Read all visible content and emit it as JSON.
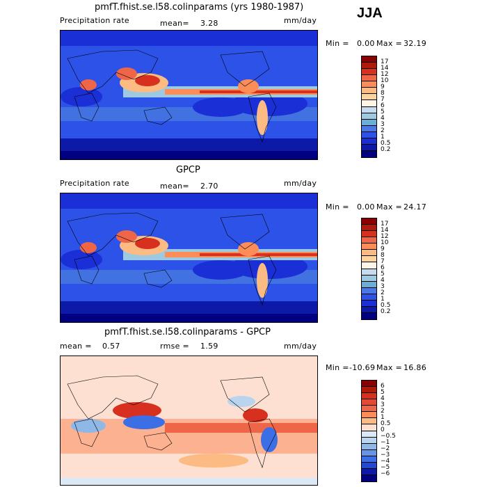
{
  "season": "JJA",
  "panels": [
    {
      "title": "pmfT.fhist.se.l58.colinparams (yrs 1980-1987)",
      "left_label": "Precipitation rate",
      "stat1_label": "mean=",
      "stat1_value": "3.28",
      "stat2_label": "",
      "stat2_value": "",
      "units": "mm/day",
      "min_label": "Min =",
      "min_value": "0.00",
      "max_label": "Max =",
      "max_value": "32.19",
      "colorbar_labels": [
        "17",
        "14",
        "12",
        "10",
        "9",
        "8",
        "7",
        "6",
        "5",
        "4",
        "3",
        "2",
        "1",
        "0.5",
        "0.2"
      ],
      "colorbar_colors": [
        "#8b0000",
        "#b01a0a",
        "#d7301f",
        "#ef6548",
        "#fc8d59",
        "#fdbb84",
        "#fdd49e",
        "#fff5e6",
        "#c6dbef",
        "#9ecae1",
        "#6baed6",
        "#4a78e8",
        "#2d52e8",
        "#1a2fd6",
        "#0d1aa8",
        "#000080"
      ],
      "map_style": "precip"
    },
    {
      "title": "GPCP",
      "left_label": "Precipitation rate",
      "stat1_label": "mean=",
      "stat1_value": "2.70",
      "stat2_label": "",
      "stat2_value": "",
      "units": "mm/day",
      "min_label": "Min =",
      "min_value": "0.00",
      "max_label": "Max =",
      "max_value": "24.17",
      "colorbar_labels": [
        "17",
        "14",
        "12",
        "10",
        "9",
        "8",
        "7",
        "6",
        "5",
        "4",
        "3",
        "2",
        "1",
        "0.5",
        "0.2"
      ],
      "colorbar_colors": [
        "#8b0000",
        "#b01a0a",
        "#d7301f",
        "#ef6548",
        "#fc8d59",
        "#fdbb84",
        "#fdd49e",
        "#fff5e6",
        "#c6dbef",
        "#9ecae1",
        "#6baed6",
        "#4a78e8",
        "#2d52e8",
        "#1a2fd6",
        "#0d1aa8",
        "#000080"
      ],
      "map_style": "precip"
    },
    {
      "title": "pmfT.fhist.se.l58.colinparams - GPCP",
      "left_label": "",
      "stat1_label": "mean =",
      "stat1_value": "0.57",
      "stat2_label": "rmse =",
      "stat2_value": "1.59",
      "units": "mm/day",
      "min_label": "Min =",
      "min_value": "-10.69",
      "max_label": "Max =",
      "max_value": "16.86",
      "colorbar_labels": [
        "6",
        "5",
        "4",
        "3",
        "2",
        "1",
        "0.5",
        "0",
        "−0.5",
        "−1",
        "−2",
        "−3",
        "−4",
        "−5",
        "−6"
      ],
      "colorbar_colors": [
        "#8b0000",
        "#b01a0a",
        "#d7301f",
        "#e34a33",
        "#ef6548",
        "#fc8d59",
        "#fdbb84",
        "#fde0d2",
        "#dbe9f6",
        "#b9d4ee",
        "#8fb8e6",
        "#6495e6",
        "#3c6ee6",
        "#2248d6",
        "#0d1aa8",
        "#000080"
      ],
      "map_style": "diff"
    }
  ]
}
